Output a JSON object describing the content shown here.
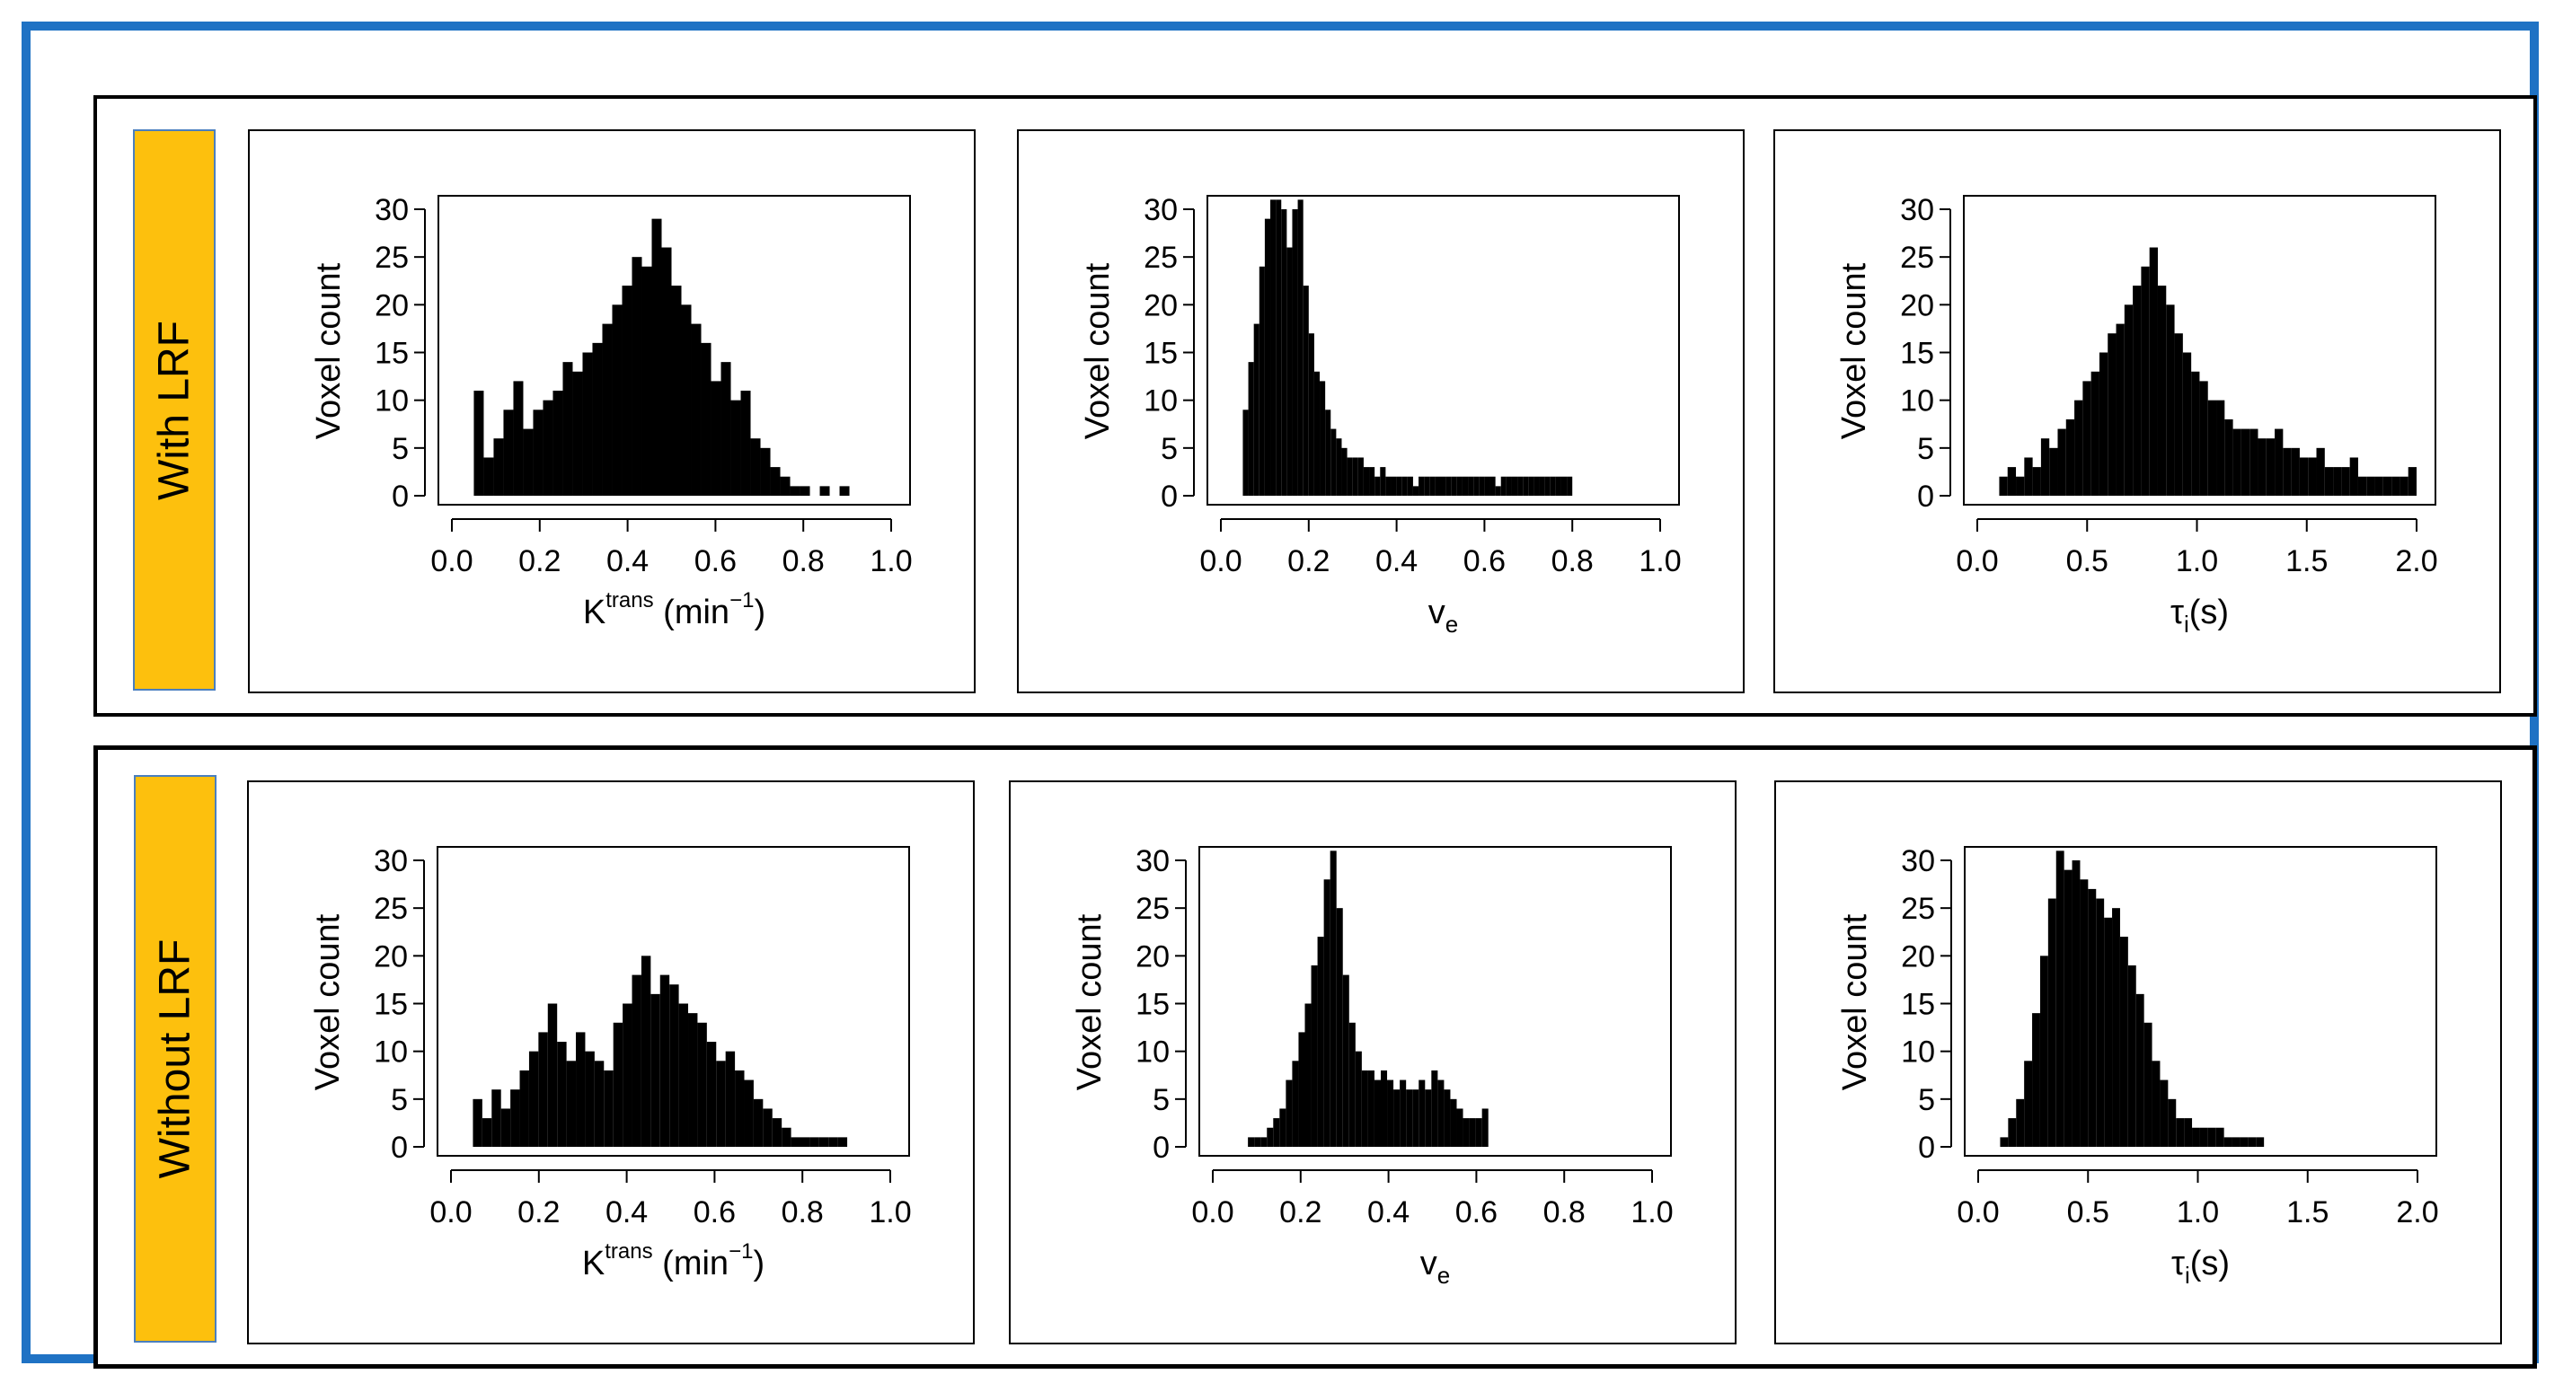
{
  "colors": {
    "frame": "#1f72c4",
    "label_bg": "#fdc00d",
    "bars": "#000000"
  },
  "rows": [
    {
      "label": "With LRF"
    },
    {
      "label": "Without  LRF"
    }
  ],
  "chart_data": [
    {
      "type": "bar",
      "row": "With LRF",
      "ylabel": "Voxel count",
      "xlabel_main": "K",
      "xlabel_sup": "trans",
      "xlabel_unit": " (min",
      "xlabel_unit_sup": "−1",
      "xlabel_close": ")",
      "xlim": [
        0,
        1
      ],
      "ylim": [
        0,
        30
      ],
      "xticks": [
        "0.0",
        "0.2",
        "0.4",
        "0.6",
        "0.8",
        "1.0"
      ],
      "yticks": [
        "0",
        "5",
        "10",
        "15",
        "20",
        "25",
        "30"
      ],
      "bin_start": 0.05,
      "bin_width": 0.0225,
      "values": [
        11,
        4,
        6,
        9,
        12,
        7,
        9,
        10,
        11,
        14,
        13,
        15,
        16,
        18,
        20,
        22,
        25,
        24,
        29,
        26,
        22,
        20,
        18,
        16,
        12,
        14,
        10,
        11,
        6,
        5,
        3,
        2,
        1,
        1,
        0,
        1,
        0,
        1
      ]
    },
    {
      "type": "bar",
      "row": "With LRF",
      "ylabel": "Voxel count",
      "xlabel_main": "v",
      "xlabel_sub": "e",
      "xlim": [
        0,
        1
      ],
      "ylim": [
        0,
        30
      ],
      "xticks": [
        "0.0",
        "0.2",
        "0.4",
        "0.6",
        "0.8",
        "1.0"
      ],
      "yticks": [
        "0",
        "5",
        "10",
        "15",
        "20",
        "25",
        "30"
      ],
      "bin_start": 0.05,
      "bin_width": 0.0125,
      "values": [
        9,
        14,
        18,
        24,
        29,
        31,
        31,
        30,
        26,
        30,
        31,
        22,
        17,
        13,
        12,
        9,
        7,
        6,
        5,
        4,
        4,
        4,
        3,
        3,
        2,
        3,
        2,
        2,
        2,
        2,
        2,
        1,
        2,
        2,
        2,
        2,
        2,
        2,
        2,
        2,
        2,
        2,
        2,
        2,
        2,
        2,
        1,
        2,
        2,
        2,
        2,
        2,
        2,
        2,
        2,
        2,
        2,
        2,
        2,
        2
      ]
    },
    {
      "type": "bar",
      "row": "With LRF",
      "ylabel": "Voxel count",
      "xlabel_main": "τ",
      "xlabel_sub": "i",
      "xlabel_unit": "(s)",
      "xlim": [
        0,
        2
      ],
      "ylim": [
        0,
        30
      ],
      "xticks": [
        "0.0",
        "0.5",
        "1.0",
        "1.5",
        "2.0"
      ],
      "yticks": [
        "0",
        "5",
        "10",
        "15",
        "20",
        "25",
        "30"
      ],
      "bin_start": 0.1,
      "bin_width": 0.038,
      "values": [
        2,
        3,
        2,
        4,
        3,
        6,
        5,
        7,
        8,
        10,
        12,
        13,
        15,
        17,
        18,
        20,
        22,
        24,
        26,
        22,
        20,
        17,
        15,
        13,
        12,
        10,
        10,
        8,
        7,
        7,
        7,
        6,
        6,
        7,
        5,
        5,
        4,
        4,
        5,
        3,
        3,
        3,
        4,
        2,
        2,
        2,
        2,
        2,
        2,
        3
      ]
    },
    {
      "type": "bar",
      "row": "Without  LRF",
      "ylabel": "Voxel count",
      "xlabel_main": "K",
      "xlabel_sup": "trans",
      "xlabel_unit": " (min",
      "xlabel_unit_sup": "−1",
      "xlabel_close": ")",
      "xlim": [
        0,
        1
      ],
      "ylim": [
        0,
        30
      ],
      "xticks": [
        "0.0",
        "0.2",
        "0.4",
        "0.6",
        "0.8",
        "1.0"
      ],
      "yticks": [
        "0",
        "5",
        "10",
        "15",
        "20",
        "25",
        "30"
      ],
      "bin_start": 0.05,
      "bin_width": 0.0213,
      "values": [
        5,
        3,
        6,
        4,
        6,
        8,
        10,
        12,
        15,
        11,
        9,
        12,
        10,
        9,
        8,
        13,
        15,
        18,
        20,
        16,
        18,
        17,
        15,
        14,
        13,
        11,
        9,
        10,
        8,
        7,
        5,
        4,
        3,
        2,
        1,
        1,
        1,
        1,
        1,
        1
      ]
    },
    {
      "type": "bar",
      "row": "Without  LRF",
      "ylabel": "Voxel count",
      "xlabel_main": "v",
      "xlabel_sub": "e",
      "xlim": [
        0,
        1
      ],
      "ylim": [
        0,
        30
      ],
      "xticks": [
        "0.0",
        "0.2",
        "0.4",
        "0.6",
        "0.8",
        "1.0"
      ],
      "yticks": [
        "0",
        "5",
        "10",
        "15",
        "20",
        "25",
        "30"
      ],
      "bin_start": 0.08,
      "bin_width": 0.0144,
      "values": [
        1,
        1,
        1,
        2,
        3,
        4,
        7,
        9,
        12,
        15,
        19,
        22,
        28,
        31,
        25,
        18,
        13,
        10,
        8,
        8,
        7,
        8,
        7,
        6,
        7,
        6,
        6,
        7,
        6,
        8,
        7,
        6,
        5,
        4,
        3,
        3,
        3,
        4
      ]
    },
    {
      "type": "bar",
      "row": "Without  LRF",
      "ylabel": "Voxel count",
      "xlabel_main": "τ",
      "xlabel_sub": "i",
      "xlabel_unit": "(s)",
      "xlim": [
        0,
        2
      ],
      "ylim": [
        0,
        30
      ],
      "xticks": [
        "0.0",
        "0.5",
        "1.0",
        "1.5",
        "2.0"
      ],
      "yticks": [
        "0",
        "5",
        "10",
        "15",
        "20",
        "25",
        "30"
      ],
      "bin_start": 0.1,
      "bin_width": 0.0364,
      "values": [
        1,
        3,
        5,
        9,
        14,
        20,
        26,
        31,
        29,
        30,
        28,
        27,
        26,
        24,
        25,
        22,
        19,
        16,
        13,
        9,
        7,
        5,
        3,
        3,
        2,
        2,
        2,
        2,
        1,
        1,
        1,
        1,
        1
      ]
    }
  ]
}
